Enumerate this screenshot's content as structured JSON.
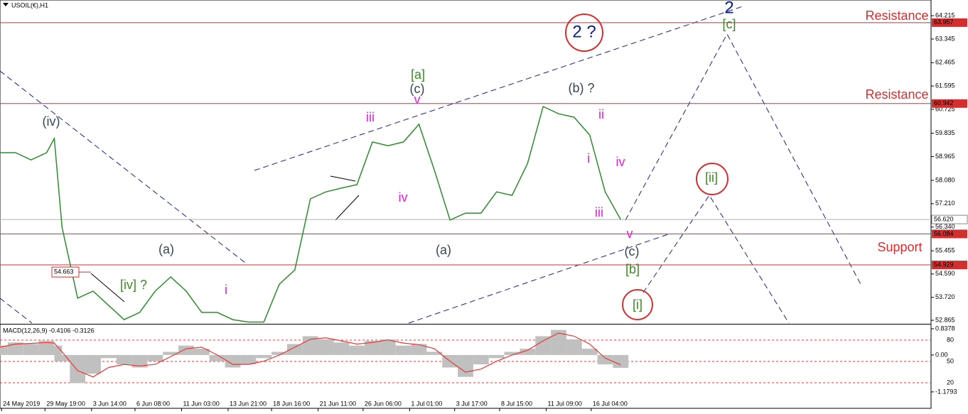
{
  "chart_data": {
    "type": "line",
    "title": "USOIL(€),H1",
    "x": [
      0,
      10,
      20,
      30,
      35,
      40,
      50,
      60,
      70,
      80,
      90,
      100,
      110,
      120,
      130,
      140,
      150,
      160,
      170,
      180,
      190,
      200,
      210,
      220,
      230,
      240,
      250,
      260,
      270,
      280,
      290,
      300,
      310,
      320,
      330,
      340,
      350,
      360,
      370,
      380,
      390,
      400
    ],
    "values": [
      59.11,
      59.11,
      58.84,
      59.11,
      59.64,
      56.33,
      53.69,
      53.95,
      53.42,
      52.89,
      53.16,
      53.95,
      54.48,
      53.95,
      53.16,
      53.16,
      52.89,
      52.8,
      52.8,
      54.21,
      54.74,
      57.39,
      57.65,
      57.79,
      57.92,
      59.51,
      59.37,
      59.51,
      60.17,
      58.45,
      56.6,
      56.86,
      56.86,
      57.65,
      57.52,
      58.71,
      60.83,
      60.56,
      60.43,
      59.77,
      57.65,
      56.62
    ],
    "color": "#2e8b2e",
    "xlim": [
      0,
      600
    ],
    "xticks": [
      {
        "value": 1,
        "label": "24 May 2019"
      },
      {
        "value": 29,
        "label": "29 May 19:00"
      },
      {
        "value": 59,
        "label": "3 Jun 14:00"
      },
      {
        "value": 87,
        "label": "6 Jun 08:00"
      },
      {
        "value": 117,
        "label": "11 Jun 03:00"
      },
      {
        "value": 147,
        "label": "13 Jun 21:00"
      },
      {
        "value": 175,
        "label": "18 Jun 16:00"
      },
      {
        "value": 205,
        "label": "21 Jun 11:00"
      },
      {
        "value": 234,
        "label": "26 Jun 06:00"
      },
      {
        "value": 264,
        "label": "1 Jul 01:00"
      },
      {
        "value": 293,
        "label": "3 Jul 17:00"
      },
      {
        "value": 322,
        "label": "8 Jul 15:00"
      },
      {
        "value": 352,
        "label": "11 Jul 09:00"
      },
      {
        "value": 381,
        "label": "16 Jul 04:00"
      }
    ],
    "ylim": [
      52.76,
      64.8
    ],
    "yticks": [
      64.215,
      63.345,
      62.465,
      61.595,
      60.725,
      59.835,
      58.965,
      {
        "value": 58.08,
        "label": "58.080"
      },
      {
        "value": 57.21,
        "label": "57.210"
      },
      {
        "value": 56.34,
        "label": "56.340"
      },
      55.455,
      {
        "value": 54.59,
        "label": "54.590"
      },
      {
        "value": 53.72,
        "label": "53.720"
      },
      52.865
    ],
    "levels": [
      63.957,
      60.942,
      56.084,
      54.929
    ],
    "level_color": "#d32f2f",
    "current": {
      "value": 56.62,
      "label": "56.620"
    },
    "marker": 54.663,
    "macd": {
      "label": "MACD(12,26,9) -0.4106 -0.3126",
      "values": [
        0.3,
        0.4,
        0.35,
        0.45,
        0.3,
        -0.2,
        -0.9,
        -0.6,
        -0.1,
        -0.3,
        -0.4,
        -0.2,
        0.1,
        0.3,
        0.2,
        -0.2,
        -0.4,
        -0.3,
        -0.1,
        0.1,
        0.35,
        0.6,
        0.5,
        0.4,
        0.3,
        0.45,
        0.5,
        0.3,
        0.35,
        0.1,
        -0.4,
        -0.7,
        -0.3,
        -0.1,
        0.1,
        0.2,
        0.6,
        0.8,
        0.5,
        0.2,
        -0.3,
        -0.4106
      ],
      "signal": [
        0.25,
        0.35,
        0.37,
        0.4,
        0.38,
        0.1,
        -0.5,
        -0.7,
        -0.4,
        -0.3,
        -0.35,
        -0.3,
        -0.05,
        0.2,
        0.25,
        0.0,
        -0.3,
        -0.3,
        -0.2,
        0.0,
        0.25,
        0.5,
        0.55,
        0.45,
        0.35,
        0.4,
        0.48,
        0.38,
        0.33,
        0.2,
        -0.2,
        -0.55,
        -0.45,
        -0.2,
        0.0,
        0.15,
        0.45,
        0.7,
        0.6,
        0.35,
        -0.1,
        -0.3126
      ],
      "color": "#c0c0c0",
      "signal_color": "#e53935",
      "ylim": [
        -1.25,
        0.95
      ],
      "yticks": [
        0.8378,
        {
          "value": 0,
          "label": "0.00"
        },
        -1.1793
      ],
      "y2lim": [
        4,
        101
      ],
      "y2ticks": [
        80,
        50,
        20
      ]
    }
  },
  "annotations": [
    "(iv)",
    "(a)",
    "[iv] ?",
    "i",
    "iii",
    "iv",
    "[a]",
    "(c)",
    "v",
    "(a)",
    "(b) ?",
    "ii",
    "i",
    "iv",
    "iii",
    "v",
    "(c)",
    "[b]",
    "[i]",
    "[ii]",
    "2 ?",
    "2",
    "[c]",
    "Resistance",
    "Resistance",
    "Support"
  ]
}
